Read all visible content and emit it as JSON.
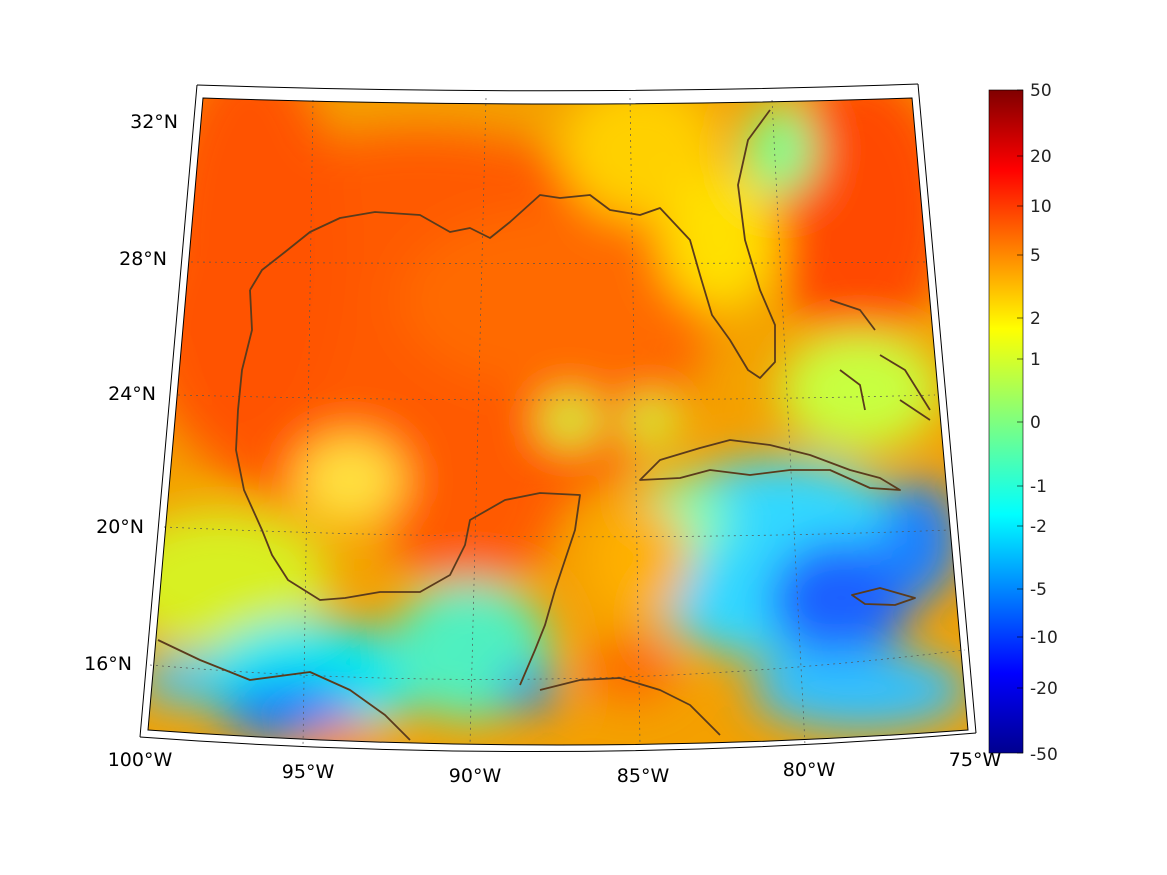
{
  "map": {
    "longitude_labels": [
      "100°W",
      "95°W",
      "90°W",
      "85°W",
      "80°W",
      "75°W"
    ],
    "latitude_labels": [
      "16°N",
      "20°N",
      "24°N",
      "28°N",
      "32°N"
    ],
    "colors": {
      "coastline": "#5a3b1c",
      "gridline": "#555555",
      "frame": "#000000"
    }
  },
  "colorbar": {
    "tick_labels": [
      "50",
      "20",
      "10",
      "5",
      "2",
      "1",
      "0",
      "-1",
      "-2",
      "-5",
      "-10",
      "-20",
      "-50"
    ],
    "colormap": "jet",
    "scale": "symmetric-log"
  }
}
